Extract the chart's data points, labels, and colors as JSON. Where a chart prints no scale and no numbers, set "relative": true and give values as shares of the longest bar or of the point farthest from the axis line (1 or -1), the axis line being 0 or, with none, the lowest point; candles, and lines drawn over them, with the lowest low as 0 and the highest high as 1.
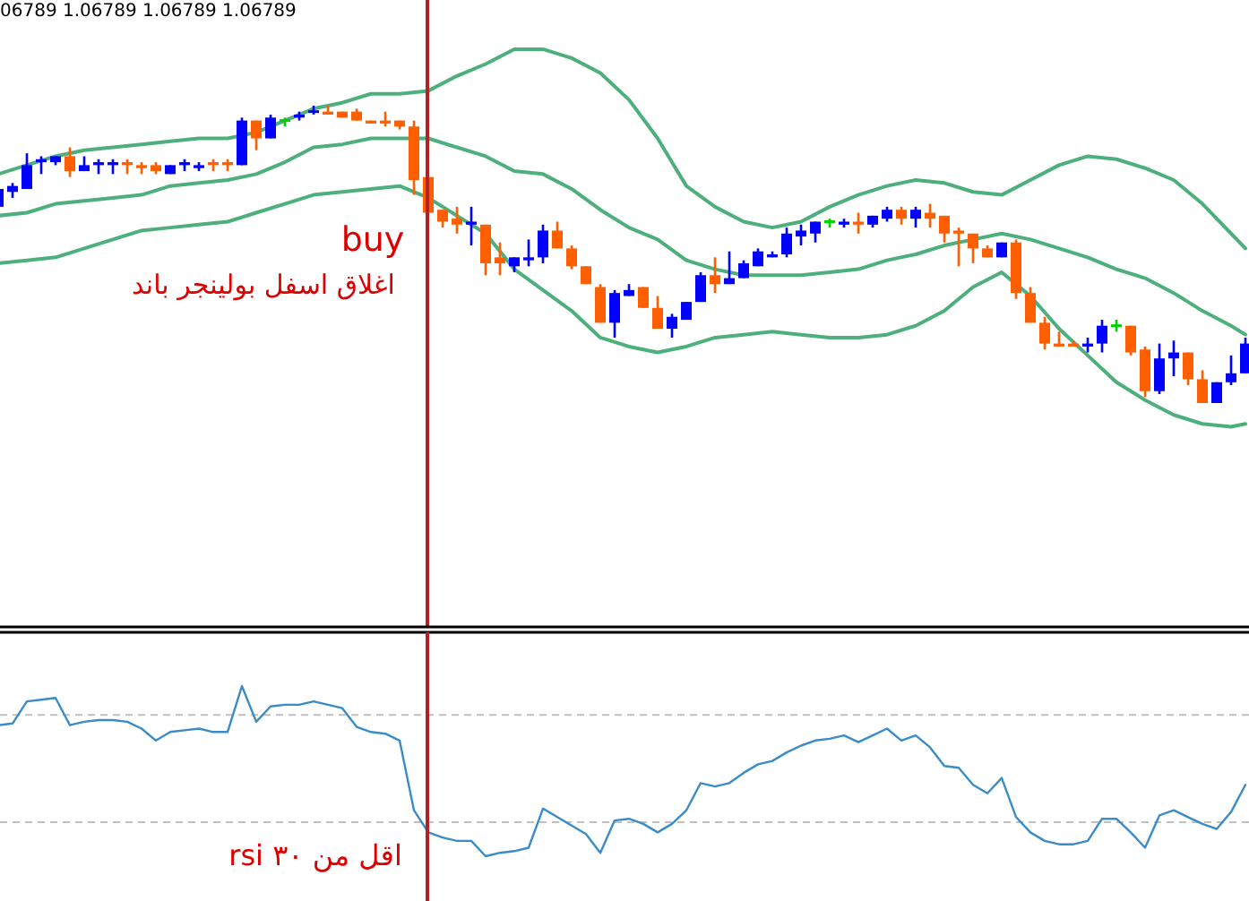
{
  "chart_data": [
    {
      "type": "candlestick",
      "relative": true,
      "categories": [
        null,
        null,
        null,
        null,
        null,
        null,
        null,
        null,
        null,
        null,
        null,
        null,
        null,
        null,
        null,
        null,
        null,
        null,
        null,
        null,
        null,
        null,
        null,
        null,
        null,
        null,
        null,
        null,
        null,
        null,
        null,
        null,
        null,
        null,
        null,
        null,
        null,
        null,
        null,
        null,
        null,
        null,
        null,
        null,
        null,
        null,
        null,
        null,
        null,
        null,
        null,
        null,
        null,
        null,
        null,
        null,
        null,
        null,
        null,
        null,
        null,
        null,
        null,
        null,
        null,
        null,
        null,
        null,
        null,
        null,
        null,
        null,
        null,
        null,
        null,
        null,
        null,
        null,
        null,
        null,
        null,
        null,
        null,
        null,
        null,
        null,
        null,
        null
      ],
      "ohlc": [
        [
          0.66,
          0.73,
          0.65,
          0.72
        ],
        [
          0.71,
          0.74,
          0.69,
          0.73
        ],
        [
          0.72,
          0.84,
          0.72,
          0.8
        ],
        [
          0.81,
          0.83,
          0.77,
          0.82
        ],
        [
          0.81,
          0.83,
          0.8,
          0.83
        ],
        [
          0.83,
          0.86,
          0.76,
          0.78
        ],
        [
          0.78,
          0.83,
          0.78,
          0.8
        ],
        [
          0.8,
          0.82,
          0.77,
          0.81
        ],
        [
          0.8,
          0.82,
          0.77,
          0.81
        ],
        [
          0.81,
          0.82,
          0.77,
          0.8
        ],
        [
          0.8,
          0.81,
          0.77,
          0.79
        ],
        [
          0.8,
          0.81,
          0.77,
          0.78
        ],
        [
          0.77,
          0.8,
          0.77,
          0.8
        ],
        [
          0.8,
          0.82,
          0.78,
          0.81
        ],
        [
          0.79,
          0.81,
          0.78,
          0.8
        ],
        [
          0.81,
          0.82,
          0.78,
          0.8
        ],
        [
          0.81,
          0.82,
          0.78,
          0.8
        ],
        [
          0.8,
          0.96,
          0.8,
          0.95
        ],
        [
          0.95,
          0.95,
          0.85,
          0.89
        ],
        [
          0.89,
          0.97,
          0.89,
          0.96
        ],
        [
          0.95,
          0.96,
          0.93,
          0.95
        ],
        [
          0.96,
          0.98,
          0.95,
          0.97
        ],
        [
          0.98,
          1.0,
          0.97,
          0.98
        ],
        [
          0.98,
          1.0,
          0.97,
          0.97
        ],
        [
          0.98,
          0.98,
          0.96,
          0.96
        ],
        [
          0.98,
          0.99,
          0.95,
          0.95
        ],
        [
          0.95,
          0.95,
          0.94,
          0.94
        ],
        [
          0.95,
          0.98,
          0.93,
          0.94
        ],
        [
          0.95,
          0.95,
          0.92,
          0.93
        ],
        [
          0.93,
          0.95,
          0.7,
          0.75
        ],
        [
          0.76,
          0.76,
          0.64,
          0.64
        ],
        [
          0.65,
          0.65,
          0.59,
          0.61
        ],
        [
          0.62,
          0.66,
          0.57,
          0.6
        ],
        [
          0.6,
          0.66,
          0.53,
          0.61
        ],
        [
          0.6,
          0.6,
          0.43,
          0.47
        ],
        [
          0.49,
          0.54,
          0.43,
          0.47
        ],
        [
          0.46,
          0.49,
          0.44,
          0.49
        ],
        [
          0.48,
          0.55,
          0.46,
          0.49
        ],
        [
          0.49,
          0.6,
          0.47,
          0.58
        ],
        [
          0.58,
          0.61,
          0.52,
          0.52
        ],
        [
          0.52,
          0.53,
          0.45,
          0.46
        ],
        [
          0.46,
          0.46,
          0.4,
          0.4
        ],
        [
          0.39,
          0.4,
          0.27,
          0.27
        ],
        [
          0.27,
          0.38,
          0.22,
          0.37
        ],
        [
          0.36,
          0.4,
          0.36,
          0.38
        ],
        [
          0.39,
          0.39,
          0.32,
          0.32
        ],
        [
          0.32,
          0.36,
          0.25,
          0.25
        ],
        [
          0.25,
          0.3,
          0.22,
          0.29
        ],
        [
          0.28,
          0.34,
          0.28,
          0.34
        ],
        [
          0.34,
          0.44,
          0.34,
          0.43
        ],
        [
          0.43,
          0.49,
          0.37,
          0.4
        ],
        [
          0.4,
          0.51,
          0.4,
          0.42
        ],
        [
          0.42,
          0.48,
          0.42,
          0.47
        ],
        [
          0.46,
          0.52,
          0.46,
          0.51
        ],
        [
          0.49,
          0.51,
          0.49,
          0.5
        ],
        [
          0.5,
          0.59,
          0.49,
          0.57
        ],
        [
          0.56,
          0.6,
          0.53,
          0.58
        ],
        [
          0.57,
          0.61,
          0.54,
          0.61
        ],
        [
          0.61,
          0.62,
          0.59,
          0.61
        ],
        [
          0.6,
          0.62,
          0.59,
          0.61
        ],
        [
          0.61,
          0.64,
          0.57,
          0.6
        ],
        [
          0.6,
          0.63,
          0.59,
          0.63
        ],
        [
          0.62,
          0.66,
          0.61,
          0.65
        ],
        [
          0.65,
          0.66,
          0.6,
          0.62
        ],
        [
          0.62,
          0.66,
          0.59,
          0.65
        ],
        [
          0.64,
          0.67,
          0.59,
          0.62
        ],
        [
          0.63,
          0.63,
          0.54,
          0.57
        ],
        [
          0.58,
          0.59,
          0.46,
          0.57
        ],
        [
          0.57,
          0.57,
          0.47,
          0.52
        ],
        [
          0.52,
          0.53,
          0.49,
          0.49
        ],
        [
          0.49,
          0.54,
          0.49,
          0.54
        ],
        [
          0.54,
          0.55,
          0.35,
          0.37
        ],
        [
          0.37,
          0.39,
          0.27,
          0.27
        ],
        [
          0.27,
          0.29,
          0.18,
          0.2
        ],
        [
          0.2,
          0.24,
          0.19,
          0.19
        ],
        [
          0.2,
          0.21,
          0.19,
          0.19
        ],
        [
          0.19,
          0.22,
          0.17,
          0.2
        ],
        [
          0.2,
          0.28,
          0.17,
          0.26
        ],
        [
          0.26,
          0.28,
          0.24,
          0.26
        ],
        [
          0.26,
          0.26,
          0.16,
          0.17
        ],
        [
          0.18,
          0.19,
          0.02,
          0.04
        ],
        [
          0.04,
          0.2,
          0.03,
          0.15
        ],
        [
          0.15,
          0.21,
          0.09,
          0.17
        ],
        [
          0.17,
          0.17,
          0.06,
          0.08
        ],
        [
          0.08,
          0.11,
          0.0,
          0.0
        ],
        [
          0.0,
          0.07,
          0.0,
          0.07
        ],
        [
          0.07,
          0.16,
          0.06,
          0.1
        ],
        [
          0.1,
          0.22,
          0.1,
          0.2
        ]
      ],
      "colors": [
        "#0000ff",
        "#0000ff",
        "#0000ff",
        "#0000ff",
        "#0000ff",
        "#ff5f00",
        "#0000ff",
        "#0000ff",
        "#0000ff",
        "#ff5f00",
        "#ff5f00",
        "#ff5f00",
        "#0000ff",
        "#0000ff",
        "#0000ff",
        "#ff5f00",
        "#ff5f00",
        "#0000ff",
        "#ff5f00",
        "#0000ff",
        "#00d000",
        "#0000ff",
        "#0000ff",
        "#ff5f00",
        "#ff5f00",
        "#ff5f00",
        "#ff5f00",
        "#ff5f00",
        "#ff5f00",
        "#ff5f00",
        "#ff5f00",
        "#ff5f00",
        "#ff5f00",
        "#0000ff",
        "#ff5f00",
        "#ff5f00",
        "#0000ff",
        "#0000ff",
        "#0000ff",
        "#ff5f00",
        "#ff5f00",
        "#ff5f00",
        "#ff5f00",
        "#0000ff",
        "#0000ff",
        "#ff5f00",
        "#ff5f00",
        "#0000ff",
        "#0000ff",
        "#0000ff",
        "#ff5f00",
        "#0000ff",
        "#0000ff",
        "#0000ff",
        "#0000ff",
        "#0000ff",
        "#0000ff",
        "#0000ff",
        "#00d000",
        "#0000ff",
        "#ff5f00",
        "#0000ff",
        "#0000ff",
        "#ff5f00",
        "#0000ff",
        "#ff5f00",
        "#ff5f00",
        "#ff5f00",
        "#ff5f00",
        "#ff5f00",
        "#0000ff",
        "#ff5f00",
        "#ff5f00",
        "#ff5f00",
        "#ff5f00",
        "#ff5f00",
        "#0000ff",
        "#0000ff",
        "#00d000",
        "#ff5f00",
        "#ff5f00",
        "#0000ff",
        "#0000ff",
        "#ff5f00",
        "#ff5f00",
        "#0000ff",
        "#0000ff",
        "#0000ff"
      ],
      "series": [
        {
          "type": "line",
          "color": "#4daf7c",
          "values": [
            0.77,
            null,
            0.8,
            null,
            0.83,
            null,
            0.85,
            null,
            0.86,
            null,
            0.87,
            null,
            0.88,
            null,
            0.89,
            null,
            0.89,
            null,
            0.91,
            null,
            0.95,
            null,
            0.99,
            null,
            1.01,
            null,
            1.04,
            null,
            1.04,
            null,
            1.05,
            null,
            1.1,
            null,
            1.14,
            null,
            1.19,
            null,
            1.19,
            null,
            1.16,
            null,
            1.11,
            null,
            1.02,
            null,
            0.89,
            null,
            0.73,
            null,
            0.66,
            null,
            0.61,
            null,
            0.59,
            null,
            0.61,
            null,
            0.66,
            null,
            0.7,
            null,
            0.73,
            null,
            0.75,
            null,
            0.74,
            null,
            0.71,
            null,
            0.7,
            null,
            0.75,
            null,
            0.8,
            null,
            0.83,
            null,
            0.82,
            null,
            0.79,
            null,
            0.75,
            null,
            0.67,
            null,
            0.57,
            0.52
          ]
        },
        {
          "type": "line",
          "color": "#4daf7c",
          "values": [
            0.63,
            null,
            0.64,
            null,
            0.67,
            null,
            0.68,
            null,
            0.69,
            null,
            0.7,
            null,
            0.73,
            null,
            0.74,
            null,
            0.75,
            null,
            0.77,
            null,
            0.81,
            null,
            0.86,
            null,
            0.87,
            null,
            0.89,
            null,
            0.89,
            null,
            0.89,
            null,
            0.86,
            null,
            0.83,
            null,
            0.78,
            null,
            0.77,
            null,
            0.72,
            null,
            0.65,
            null,
            0.59,
            null,
            0.55,
            null,
            0.48,
            null,
            0.45,
            null,
            0.43,
            null,
            0.43,
            null,
            0.43,
            null,
            0.44,
            null,
            0.45,
            null,
            0.48,
            null,
            0.5,
            null,
            0.53,
            null,
            0.55,
            null,
            0.57,
            null,
            0.55,
            null,
            0.52,
            null,
            0.49,
            null,
            0.45,
            null,
            0.42,
            null,
            0.37,
            null,
            0.31,
            null,
            0.26,
            0.23
          ]
        },
        {
          "type": "line",
          "color": "#4daf7c",
          "values": [
            0.47,
            null,
            0.48,
            null,
            0.49,
            null,
            0.52,
            null,
            0.55,
            null,
            0.58,
            null,
            0.59,
            null,
            0.6,
            null,
            0.61,
            null,
            0.64,
            null,
            0.67,
            null,
            0.7,
            null,
            0.71,
            null,
            0.72,
            null,
            0.73,
            null,
            0.69,
            null,
            0.63,
            null,
            0.57,
            null,
            0.45,
            null,
            0.38,
            null,
            0.31,
            null,
            0.22,
            null,
            0.19,
            null,
            0.17,
            null,
            0.19,
            null,
            0.22,
            null,
            0.23,
            null,
            0.24,
            null,
            0.23,
            null,
            0.22,
            null,
            0.22,
            null,
            0.23,
            null,
            0.26,
            null,
            0.31,
            null,
            0.39,
            null,
            0.44,
            null,
            0.36,
            null,
            0.25,
            null,
            0.16,
            null,
            0.07,
            null,
            0.01,
            null,
            -0.04,
            null,
            -0.07,
            null,
            -0.08,
            -0.07
          ]
        }
      ],
      "annotations": [
        "06789 1.06789 1.06789 1.06789",
        "buy",
        "اغلاق اسفل بولينجر باند"
      ]
    },
    {
      "type": "line",
      "relative": true,
      "categories": [
        null,
        null,
        null,
        null,
        null,
        null,
        null,
        null,
        null,
        null,
        null,
        null,
        null,
        null,
        null,
        null,
        null,
        null,
        null,
        null,
        null,
        null,
        null,
        null,
        null,
        null,
        null,
        null,
        null,
        null,
        null,
        null,
        null,
        null,
        null,
        null,
        null,
        null,
        null,
        null,
        null,
        null,
        null,
        null,
        null,
        null,
        null,
        null,
        null,
        null,
        null,
        null,
        null,
        null,
        null,
        null,
        null,
        null,
        null,
        null,
        null,
        null,
        null,
        null,
        null,
        null,
        null,
        null,
        null,
        null,
        null,
        null,
        null,
        null,
        null,
        null,
        null,
        null,
        null,
        null,
        null,
        null,
        null,
        null,
        null,
        null,
        null,
        null
      ],
      "series": [
        {
          "color": "#3a8cc8",
          "values": [
            0.77,
            0.78,
            0.91,
            0.92,
            0.93,
            0.77,
            0.79,
            0.8,
            0.8,
            0.79,
            0.75,
            0.68,
            0.73,
            0.74,
            0.75,
            0.73,
            0.73,
            1.0,
            0.79,
            0.88,
            0.89,
            0.89,
            0.91,
            0.89,
            0.87,
            0.76,
            0.73,
            0.72,
            0.68,
            0.27,
            0.14,
            0.11,
            0.09,
            0.09,
            0.0,
            0.02,
            0.03,
            0.05,
            0.28,
            0.23,
            0.18,
            0.13,
            0.02,
            0.21,
            0.22,
            0.19,
            0.14,
            0.19,
            0.27,
            0.43,
            0.41,
            0.43,
            0.49,
            0.54,
            0.56,
            0.61,
            0.65,
            0.68,
            0.69,
            0.71,
            0.67,
            0.71,
            0.75,
            0.68,
            0.71,
            0.64,
            0.53,
            0.52,
            0.42,
            0.37,
            0.46,
            0.23,
            0.14,
            0.09,
            0.07,
            0.07,
            0.09,
            0.22,
            0.22,
            0.14,
            0.05,
            0.24,
            0.27,
            0.23,
            0.19,
            0.16,
            0.26,
            0.42
          ]
        }
      ],
      "ref_lines": [
        {
          "axis": "y",
          "value": 0.83,
          "color": "#c0c0c0",
          "line_style": "dashed"
        },
        {
          "axis": "y",
          "value": 0.2,
          "color": "#c0c0c0",
          "line_style": "dashed"
        }
      ],
      "annotations": [
        "اقل من ٣٠ rsi"
      ]
    }
  ]
}
